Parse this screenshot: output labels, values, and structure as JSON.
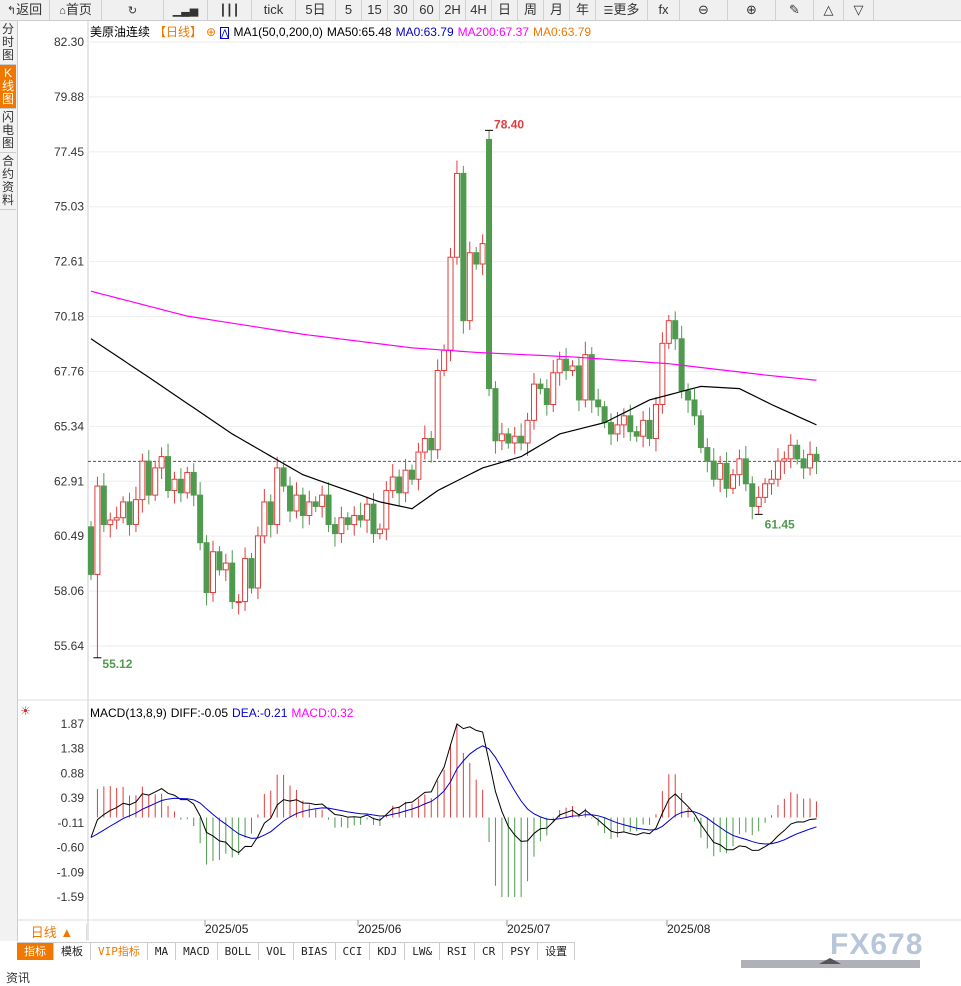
{
  "toolbar": {
    "items": [
      {
        "icon": "back-arrow-icon",
        "label": "返回"
      },
      {
        "icon": "home-icon",
        "label": "首页"
      },
      {
        "icon": "refresh-icon",
        "label": ""
      },
      {
        "icon": "chart-bars-icon",
        "label": ""
      },
      {
        "icon": "candle-icon",
        "label": ""
      },
      {
        "label": "tick"
      },
      {
        "label": "5日"
      },
      {
        "label": "5"
      },
      {
        "label": "15"
      },
      {
        "label": "30"
      },
      {
        "label": "60"
      },
      {
        "label": "2H"
      },
      {
        "label": "4H"
      },
      {
        "label": "日"
      },
      {
        "label": "周"
      },
      {
        "label": "月"
      },
      {
        "label": "年"
      },
      {
        "icon": "menu-icon",
        "label": "更多"
      },
      {
        "icon": "fx-icon",
        "label": "fx"
      },
      {
        "icon": "zoom-out-icon",
        "label": "⊖"
      },
      {
        "icon": "zoom-in-icon",
        "label": "⊕"
      },
      {
        "icon": "pen-icon",
        "label": "✎"
      },
      {
        "icon": "triangle-up-icon",
        "label": "△"
      },
      {
        "icon": "triangle-down-icon",
        "label": "▽"
      }
    ]
  },
  "left_tabs": [
    "分时图",
    "K线图",
    "闪电图",
    "合约资料"
  ],
  "legend": {
    "symbol": "美原油连续",
    "period": "【日线】",
    "ma_name": "MA1(50,0,200,0)",
    "ma50": "MA50:65.48",
    "ma0a": "MA0:63.79",
    "ma200": "MA200:67.37",
    "ma0b": "MA0:63.79"
  },
  "macd_legend": {
    "name": "MACD(13,8,9)",
    "diff": "DIFF:-0.05",
    "dea": "DEA:-0.21",
    "macd": "MACD:0.32"
  },
  "colors": {
    "up": "#e03c3c",
    "down": "#4f9a4f",
    "ma50": "#000000",
    "ma200": "#ff00ff",
    "dea": "#0000cc",
    "ma0": "#f07800"
  },
  "chart_data": {
    "type": "candlestick",
    "price_ticks": [
      "82.30",
      "79.88",
      "77.45",
      "75.03",
      "72.61",
      "70.18",
      "67.76",
      "65.34",
      "62.91",
      "60.49",
      "58.06",
      "55.64"
    ],
    "ylim": [
      55.64,
      82.3
    ],
    "macd_ticks": [
      "1.87",
      "1.38",
      "0.88",
      "0.39",
      "-0.11",
      "-0.60",
      "-1.09",
      "-1.59"
    ],
    "macd_ylim": [
      -1.59,
      1.87
    ],
    "date_labels": [
      "2025/05",
      "2025/06",
      "2025/07",
      "2025/08"
    ],
    "annotations": {
      "high": "78.40",
      "low": "55.12",
      "recent_low": "61.45"
    },
    "last_price": 63.79,
    "closes": [
      58.8,
      62.7,
      61.0,
      61.2,
      61.3,
      62.0,
      61.0,
      62.1,
      63.8,
      62.3,
      63.5,
      64.0,
      62.5,
      63.0,
      62.4,
      63.3,
      62.3,
      60.2,
      58.0,
      59.8,
      59.0,
      59.3,
      57.6,
      57.6,
      59.5,
      58.2,
      60.5,
      62.0,
      61.0,
      63.5,
      62.7,
      61.6,
      62.3,
      61.4,
      62.0,
      61.8,
      62.3,
      61.0,
      60.6,
      61.3,
      61.0,
      61.4,
      61.2,
      61.9,
      60.6,
      60.8,
      62.5,
      63.1,
      62.4,
      63.4,
      63.0,
      64.2,
      64.8,
      64.3,
      67.8,
      68.7,
      72.8,
      76.5,
      70.0,
      73.0,
      72.5,
      73.4,
      67.0,
      64.7,
      65.0,
      64.6,
      64.9,
      64.6,
      65.6,
      67.2,
      67.0,
      66.3,
      67.7,
      68.3,
      67.8,
      68.0,
      66.5,
      68.5,
      66.5,
      66.2,
      65.5,
      65.0,
      65.4,
      65.8,
      65.1,
      64.9,
      65.6,
      64.8,
      66.3,
      69.0,
      70.0,
      69.2,
      66.9,
      66.5,
      65.8,
      64.4,
      63.8,
      63.0,
      63.7,
      62.6,
      63.2,
      63.9,
      62.8,
      61.8,
      62.2,
      62.8,
      63.0,
      63.8,
      63.9,
      64.5,
      63.9,
      63.5,
      64.1,
      63.8
    ],
    "first_open": 60.9,
    "extremes": [
      {
        "index": 1,
        "low": 55.12
      },
      {
        "index": 62,
        "open": 78.0,
        "high": 78.4
      },
      {
        "index": 104,
        "low": 61.45
      }
    ],
    "ma50": [
      [
        0,
        69.2
      ],
      [
        9,
        67.5
      ],
      [
        22,
        65.0
      ],
      [
        33,
        63.2
      ],
      [
        45,
        62.0
      ],
      [
        50,
        61.7
      ],
      [
        54,
        62.5
      ],
      [
        61,
        63.5
      ],
      [
        67,
        64.0
      ],
      [
        73,
        65.0
      ],
      [
        80,
        65.5
      ],
      [
        87,
        66.5
      ],
      [
        95,
        67.1
      ],
      [
        101,
        67.0
      ],
      [
        106,
        66.3
      ],
      [
        113,
        65.4
      ]
    ],
    "ma200": [
      [
        0,
        71.3
      ],
      [
        15,
        70.2
      ],
      [
        33,
        69.4
      ],
      [
        50,
        68.8
      ],
      [
        60,
        68.6
      ],
      [
        75,
        68.4
      ],
      [
        90,
        68.1
      ],
      [
        105,
        67.6
      ],
      [
        113,
        67.37
      ]
    ]
  },
  "period_label": "日线 ▲",
  "bottom_tabs": [
    "指标",
    "模板",
    "VIP指标",
    "MA",
    "MACD",
    "BOLL",
    "VOL",
    "BIAS",
    "CCI",
    "KDJ",
    "LW&",
    "RSI",
    "CR",
    "PSY",
    "设置"
  ],
  "news": "资讯",
  "watermark": "FX678"
}
